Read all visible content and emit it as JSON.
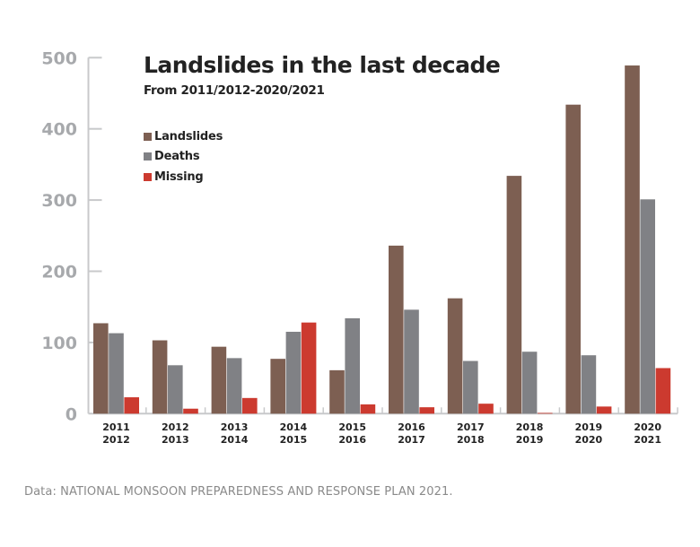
{
  "chart_data": {
    "type": "bar",
    "title": "Landslides in the last decade",
    "subtitle": "From 2011/2012-2020/2021",
    "xlabel": "",
    "ylabel": "",
    "ylim": [
      0,
      500
    ],
    "yticks": [
      0,
      100,
      200,
      300,
      400,
      500
    ],
    "grid": false,
    "legend_position": "top-left",
    "categories": [
      [
        "2011",
        "2012"
      ],
      [
        "2012",
        "2013"
      ],
      [
        "2013",
        "2014"
      ],
      [
        "2014",
        "2015"
      ],
      [
        "2015",
        "2016"
      ],
      [
        "2016",
        "2017"
      ],
      [
        "2017",
        "2018"
      ],
      [
        "2018",
        "2019"
      ],
      [
        "2019",
        "2020"
      ],
      [
        "2020",
        "2021"
      ]
    ],
    "series": [
      {
        "name": "Landslides",
        "color": "#7d5f52",
        "values": [
          127,
          103,
          94,
          77,
          61,
          236,
          162,
          334,
          434,
          489
        ]
      },
      {
        "name": "Deaths",
        "color": "#808185",
        "values": [
          113,
          68,
          78,
          115,
          134,
          146,
          74,
          87,
          82,
          301
        ]
      },
      {
        "name": "Missing",
        "color": "#cc3a2f",
        "values": [
          23,
          7,
          22,
          128,
          13,
          9,
          14,
          1,
          10,
          64
        ]
      }
    ]
  },
  "footer": {
    "source": "Data: NATIONAL MONSOON PREPAREDNESS AND RESPONSE PLAN 2021."
  }
}
